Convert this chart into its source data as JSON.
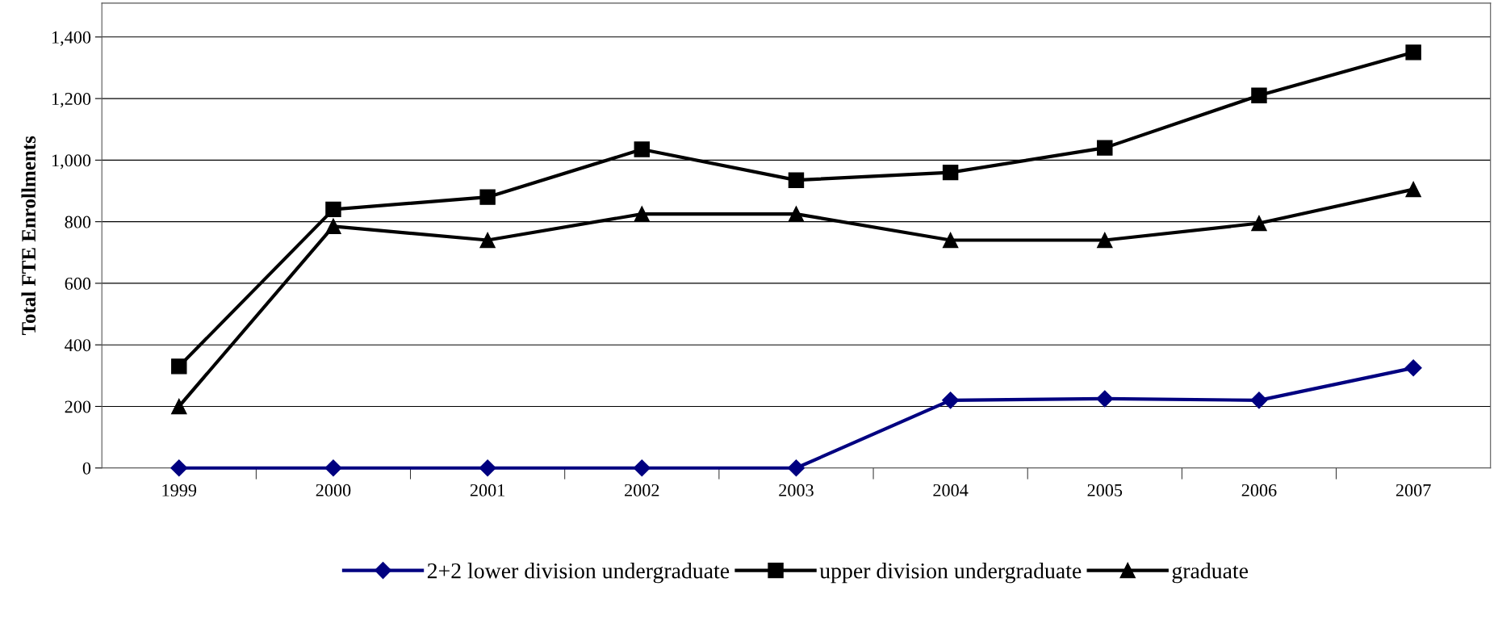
{
  "chart_data": {
    "type": "line",
    "ylabel": "Total FTE Enrollments",
    "categories": [
      "1999",
      "2000",
      "2001",
      "2002",
      "2003",
      "2004",
      "2005",
      "2006",
      "2007"
    ],
    "series": [
      {
        "name": "2+2 lower division undergraduate",
        "color": "#000080",
        "marker": "diamond",
        "values": [
          0,
          0,
          0,
          0,
          0,
          220,
          225,
          220,
          325
        ]
      },
      {
        "name": "upper division undergraduate",
        "color": "#000000",
        "marker": "square",
        "values": [
          330,
          840,
          880,
          1035,
          935,
          960,
          1040,
          1210,
          1350
        ]
      },
      {
        "name": "graduate",
        "color": "#000000",
        "marker": "triangle",
        "values": [
          200,
          785,
          740,
          825,
          825,
          740,
          740,
          795,
          905
        ]
      }
    ],
    "ylim": [
      0,
      1510
    ],
    "yticks": [
      0,
      200,
      400,
      600,
      800,
      {
        "value": 1000,
        "label": "1,000"
      },
      {
        "value": 1200,
        "label": "1,200"
      },
      {
        "value": 1400,
        "label": "1,400"
      }
    ],
    "grid": "y",
    "legend": "bottom",
    "line_style": "solid"
  }
}
